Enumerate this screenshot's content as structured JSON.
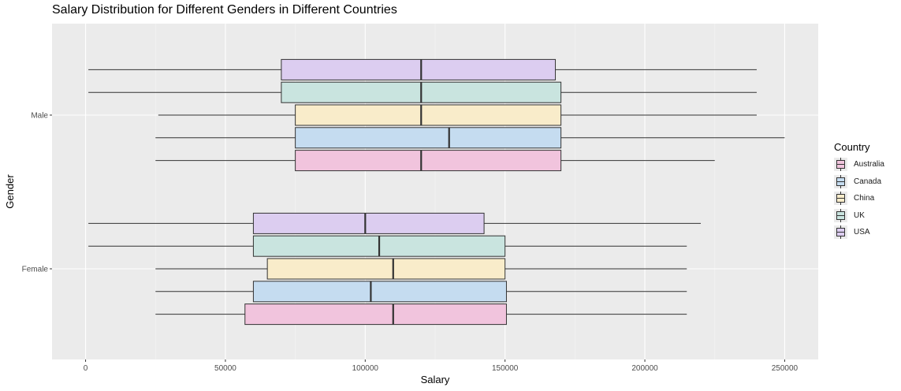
{
  "chart_data": {
    "type": "boxplot",
    "orientation": "horizontal",
    "title": "Salary Distribution for Different Genders in Different Countries",
    "xlabel": "Salary",
    "ylabel": "Gender",
    "xlim": [
      -12000,
      262000
    ],
    "x_ticks": [
      0,
      50000,
      100000,
      150000,
      200000,
      250000
    ],
    "x_tick_labels": [
      "0",
      "50000",
      "100000",
      "150000",
      "200000",
      "250000"
    ],
    "categories": [
      "Male",
      "Female"
    ],
    "grid": true,
    "legend": {
      "title": "Country",
      "position": "right"
    },
    "series": [
      {
        "name": "Australia",
        "color": "#f1c4dd",
        "boxes": {
          "Male": {
            "min": 25000,
            "q1": 75000,
            "median": 120000,
            "q3": 170000,
            "max": 225000
          },
          "Female": {
            "min": 25000,
            "q1": 57000,
            "median": 110000,
            "q3": 150500,
            "max": 215000
          }
        }
      },
      {
        "name": "Canada",
        "color": "#c5dcf0",
        "boxes": {
          "Male": {
            "min": 25000,
            "q1": 75000,
            "median": 130000,
            "q3": 170000,
            "max": 250000
          },
          "Female": {
            "min": 25000,
            "q1": 60000,
            "median": 102000,
            "q3": 150500,
            "max": 215000
          }
        }
      },
      {
        "name": "China",
        "color": "#f9ecca",
        "boxes": {
          "Male": {
            "min": 26000,
            "q1": 75000,
            "median": 120000,
            "q3": 170000,
            "max": 240000
          },
          "Female": {
            "min": 25000,
            "q1": 65000,
            "median": 110000,
            "q3": 150000,
            "max": 215000
          }
        }
      },
      {
        "name": "UK",
        "color": "#c9e4df",
        "boxes": {
          "Male": {
            "min": 1000,
            "q1": 70000,
            "median": 120000,
            "q3": 170000,
            "max": 240000
          },
          "Female": {
            "min": 1000,
            "q1": 60000,
            "median": 105000,
            "q3": 150000,
            "max": 215000
          }
        }
      },
      {
        "name": "USA",
        "color": "#dccdf0",
        "boxes": {
          "Male": {
            "min": 1000,
            "q1": 70000,
            "median": 120000,
            "q3": 168000,
            "max": 240000
          },
          "Female": {
            "min": 1000,
            "q1": 60000,
            "median": 100000,
            "q3": 142500,
            "max": 220000
          }
        }
      }
    ]
  }
}
